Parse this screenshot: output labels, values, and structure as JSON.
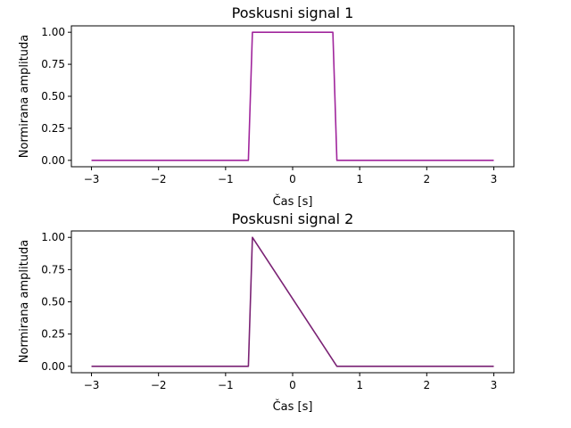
{
  "figure": {
    "background": "#ffffff"
  },
  "chart_data": [
    {
      "type": "line",
      "title": "Poskusni signal 1",
      "xlabel": "Čas [s]",
      "ylabel": "Normirana amplituda",
      "xlim": [
        -3.3,
        3.3
      ],
      "ylim": [
        -0.05,
        1.05
      ],
      "xticks": [
        -3,
        -2,
        -1,
        0,
        1,
        2,
        3
      ],
      "xtick_labels": [
        "−3",
        "−2",
        "−1",
        "0",
        "1",
        "2",
        "3"
      ],
      "yticks": [
        0,
        0.25,
        0.5,
        0.75,
        1.0
      ],
      "ytick_labels": [
        "0.00",
        "0.25",
        "0.50",
        "0.75",
        "1.00"
      ],
      "grid": false,
      "series": [
        {
          "color": "#a0259c",
          "x": [
            -3.0,
            -0.66,
            -0.6,
            0.6,
            0.66,
            3.0
          ],
          "y": [
            0,
            0,
            1,
            1,
            0,
            0
          ]
        }
      ]
    },
    {
      "type": "line",
      "title": "Poskusni signal 2",
      "xlabel": "Čas [s]",
      "ylabel": "Normirana amplituda",
      "xlim": [
        -3.3,
        3.3
      ],
      "ylim": [
        -0.05,
        1.05
      ],
      "xticks": [
        -3,
        -2,
        -1,
        0,
        1,
        2,
        3
      ],
      "xtick_labels": [
        "−3",
        "−2",
        "−1",
        "0",
        "1",
        "2",
        "3"
      ],
      "yticks": [
        0,
        0.25,
        0.5,
        0.75,
        1.0
      ],
      "ytick_labels": [
        "0.00",
        "0.25",
        "0.50",
        "0.75",
        "1.00"
      ],
      "grid": false,
      "series": [
        {
          "color": "#7a2274",
          "x": [
            -3.0,
            -0.66,
            -0.6,
            0.66,
            3.0
          ],
          "y": [
            0,
            0,
            1,
            0,
            0
          ]
        }
      ]
    }
  ]
}
